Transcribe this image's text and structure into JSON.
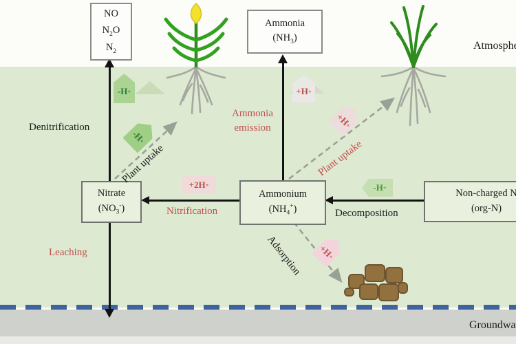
{
  "figure": {
    "title_implicit": "Soil nitrogen cycle diagram",
    "regions": {
      "atmosphere_label": "Atmosphere",
      "groundwater_label": "Groundwater"
    },
    "boxes": {
      "gases": {
        "lines": [
          "NO",
          "N_2O",
          "N_2"
        ]
      },
      "ammonia": {
        "lines": [
          "Ammonia",
          "(NH_3)"
        ]
      },
      "nitrate": {
        "lines": [
          "Nitrate",
          "(NO_3^-)"
        ]
      },
      "ammonium": {
        "lines": [
          "Ammonium",
          "(NH_4^+)"
        ]
      },
      "organic_n": {
        "lines": [
          "Non-charged N",
          "(org-N)"
        ]
      }
    },
    "processes": {
      "denitrification": "Denitrification",
      "ammonia_emission": "Ammonia emission",
      "plant_uptake_nitrate": "Plant uptake",
      "plant_uptake_ammonium": "Plant uptake",
      "nitrification": "Nitrification",
      "decomposition": "Decomposition",
      "leaching": "Leaching",
      "adsorption": "Adsorption"
    },
    "proton_tags": {
      "denitrification": "-H^+",
      "plant_uptake_nitrate": "-H^+",
      "ammonia_emission": "+H^+",
      "plant_uptake_ammonium": "+H^+",
      "nitrification": "+2H^+",
      "decomposition": "-H^+",
      "adsorption": "+H^+"
    },
    "icons": {
      "crop_plant": "corn-plant-with-roots-icon",
      "grass_plant": "grass-plant-with-roots-icon",
      "soil_particles": "soil-clumps-icon"
    },
    "colors": {
      "soil": "#dee9d2",
      "atmosphere": "#fcfdf9",
      "groundwater": "#cfd1cd",
      "watertable_blue": "#3e639e",
      "process_red": "#c0504d",
      "tag_green_fill": "#a9d18e",
      "tag_green_text": "#2f7d32",
      "tag_pink_fill": "#f0dbda",
      "tag_gray_fill": "#e9e8e4",
      "clump_brown": "#92713f",
      "dashed_arrow_gray": "#97a295"
    }
  }
}
